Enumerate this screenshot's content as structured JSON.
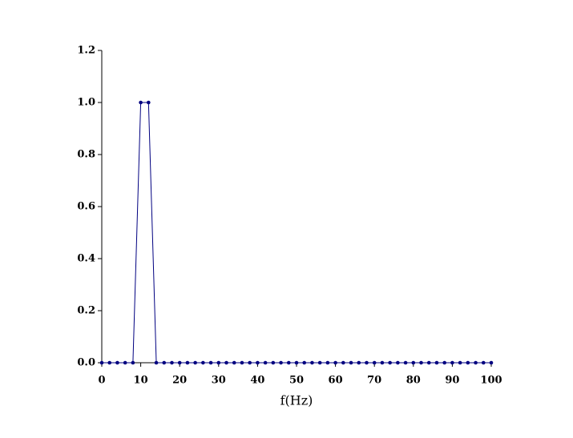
{
  "chart_data": {
    "type": "line",
    "xlabel": "f(Hz)",
    "x": [
      0,
      2,
      4,
      6,
      8,
      10,
      12,
      14,
      16,
      18,
      20,
      22,
      24,
      26,
      28,
      30,
      32,
      34,
      36,
      38,
      40,
      42,
      44,
      46,
      48,
      50,
      52,
      54,
      56,
      58,
      60,
      62,
      64,
      66,
      68,
      70,
      72,
      74,
      76,
      78,
      80,
      82,
      84,
      86,
      88,
      90,
      92,
      94,
      96,
      98,
      100
    ],
    "values": [
      0,
      0,
      0,
      0,
      0,
      1,
      1,
      0,
      0,
      0,
      0,
      0,
      0,
      0,
      0,
      0,
      0,
      0,
      0,
      0,
      0,
      0,
      0,
      0,
      0,
      0,
      0,
      0,
      0,
      0,
      0,
      0,
      0,
      0,
      0,
      0,
      0,
      0,
      0,
      0,
      0,
      0,
      0,
      0,
      0,
      0,
      0,
      0,
      0,
      0,
      0
    ],
    "color": "#000080",
    "xlim": [
      0,
      100
    ],
    "xticks": [
      0,
      10,
      20,
      30,
      40,
      50,
      60,
      70,
      80,
      90,
      100
    ],
    "ylim": [
      0,
      1.2
    ],
    "yticks": [
      {
        "value": 0,
        "label": "0.0"
      },
      0.2,
      0.4,
      0.6,
      0.8,
      {
        "value": 1,
        "label": "1.0"
      },
      1.2
    ],
    "grid": false
  }
}
